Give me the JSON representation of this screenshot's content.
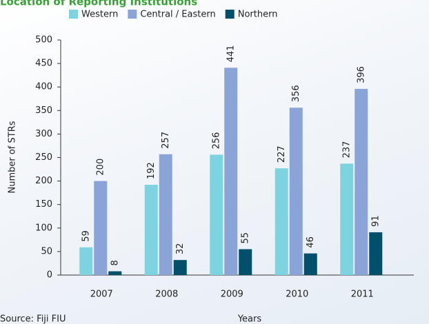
{
  "chart_data": {
    "type": "bar",
    "title": "Location of Reporting Institutions",
    "categories": [
      "2007",
      "2008",
      "2009",
      "2010",
      "2011"
    ],
    "series": [
      {
        "name": "Western",
        "color": "#7dd3e0",
        "values": [
          59,
          192,
          256,
          227,
          237
        ]
      },
      {
        "name": "Central / Eastern",
        "color": "#8aa4d8",
        "values": [
          200,
          257,
          441,
          356,
          396
        ]
      },
      {
        "name": "Northern",
        "color": "#004f6b",
        "values": [
          8,
          32,
          55,
          46,
          91
        ]
      }
    ],
    "ylim": [
      0,
      500
    ],
    "yticks": [
      0,
      50,
      100,
      150,
      200,
      250,
      300,
      350,
      400,
      450,
      500
    ],
    "ylabel": "Number of STRs",
    "xlabel": "Years",
    "source": "Source: Fiji FIU",
    "legend": "top"
  }
}
